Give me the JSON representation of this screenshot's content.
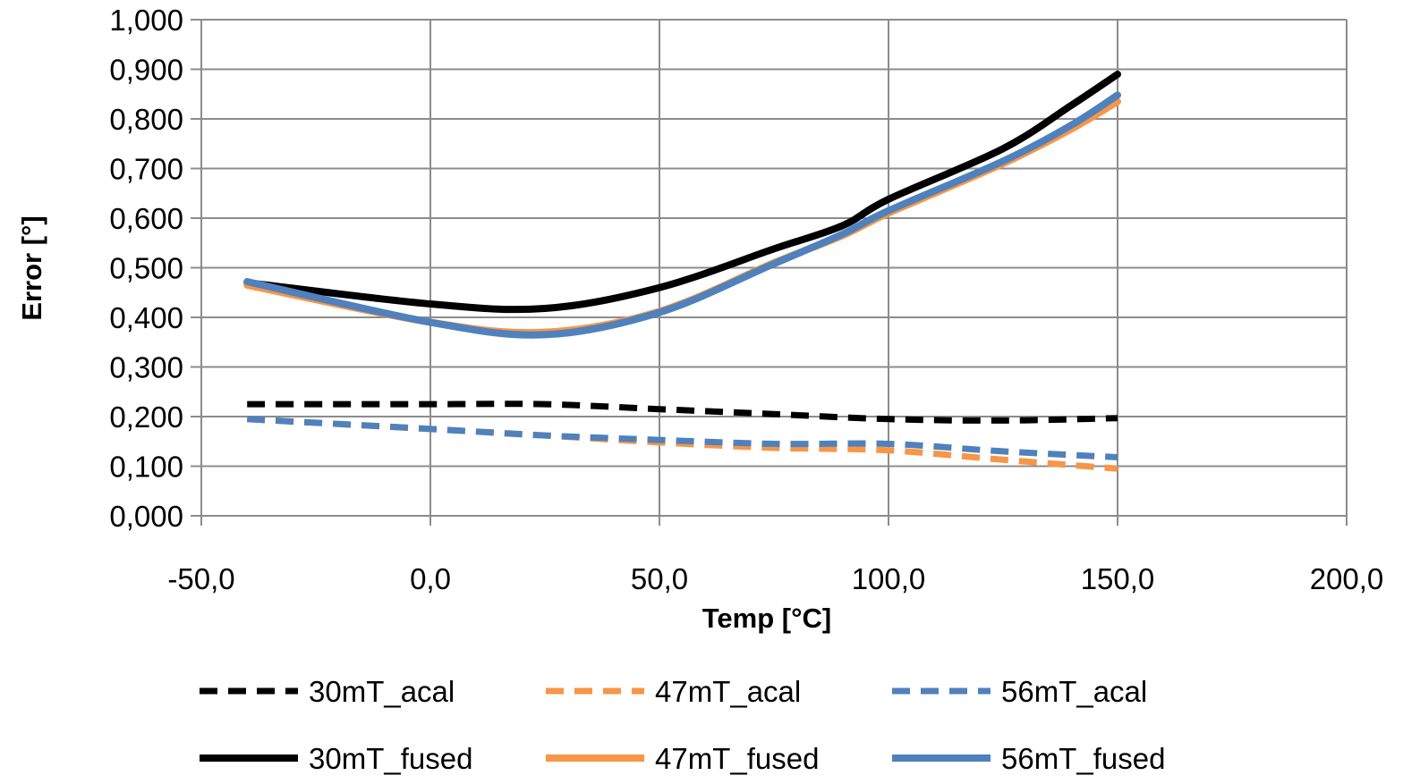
{
  "chart_data": {
    "type": "line",
    "title": "",
    "xlabel": "Temp [°C]",
    "ylabel": "Error [°]",
    "xlim": [
      -50,
      200
    ],
    "ylim": [
      0,
      1
    ],
    "x_ticks": [
      -50,
      0,
      50,
      100,
      150,
      200
    ],
    "x_tick_labels": [
      "-50,0",
      "0,0",
      "50,0",
      "100,0",
      "150,0",
      "200,0"
    ],
    "y_ticks": [
      0,
      0.1,
      0.2,
      0.3,
      0.4,
      0.5,
      0.6,
      0.7,
      0.8,
      0.9,
      1.0
    ],
    "y_tick_labels": [
      "0,000",
      "0,100",
      "0,200",
      "0,300",
      "0,400",
      "0,500",
      "0,600",
      "0,700",
      "0,800",
      "0,900",
      "1,000"
    ],
    "grid": true,
    "legend_position": "bottom",
    "series": [
      {
        "name": "30mT_acal",
        "color": "#000000",
        "dashed": true,
        "points": [
          [
            -40,
            0.225
          ],
          [
            0,
            0.225
          ],
          [
            25,
            0.225
          ],
          [
            50,
            0.215
          ],
          [
            75,
            0.205
          ],
          [
            100,
            0.195
          ],
          [
            125,
            0.192
          ],
          [
            150,
            0.197
          ]
        ]
      },
      {
        "name": "47mT_acal",
        "color": "#F79646",
        "dashed": true,
        "points": [
          [
            -40,
            0.195
          ],
          [
            0,
            0.175
          ],
          [
            25,
            0.162
          ],
          [
            50,
            0.148
          ],
          [
            75,
            0.137
          ],
          [
            100,
            0.132
          ],
          [
            125,
            0.113
          ],
          [
            150,
            0.095
          ]
        ]
      },
      {
        "name": "56mT_acal",
        "color": "#4F81BD",
        "dashed": true,
        "points": [
          [
            -40,
            0.195
          ],
          [
            0,
            0.175
          ],
          [
            25,
            0.162
          ],
          [
            50,
            0.153
          ],
          [
            75,
            0.145
          ],
          [
            100,
            0.145
          ],
          [
            125,
            0.13
          ],
          [
            150,
            0.118
          ]
        ]
      },
      {
        "name": "30mT_fused",
        "color": "#000000",
        "dashed": false,
        "points": [
          [
            -40,
            0.47
          ],
          [
            0,
            0.427
          ],
          [
            25,
            0.418
          ],
          [
            50,
            0.46
          ],
          [
            75,
            0.538
          ],
          [
            90,
            0.585
          ],
          [
            100,
            0.638
          ],
          [
            125,
            0.74
          ],
          [
            140,
            0.828
          ],
          [
            150,
            0.89
          ]
        ]
      },
      {
        "name": "47mT_fused",
        "color": "#F79646",
        "dashed": false,
        "points": [
          [
            -40,
            0.465
          ],
          [
            0,
            0.39
          ],
          [
            25,
            0.37
          ],
          [
            50,
            0.412
          ],
          [
            75,
            0.51
          ],
          [
            90,
            0.565
          ],
          [
            100,
            0.61
          ],
          [
            125,
            0.71
          ],
          [
            140,
            0.78
          ],
          [
            150,
            0.835
          ]
        ]
      },
      {
        "name": "56mT_fused",
        "color": "#4F81BD",
        "dashed": false,
        "points": [
          [
            -40,
            0.472
          ],
          [
            0,
            0.39
          ],
          [
            25,
            0.365
          ],
          [
            50,
            0.41
          ],
          [
            75,
            0.508
          ],
          [
            90,
            0.568
          ],
          [
            100,
            0.615
          ],
          [
            125,
            0.715
          ],
          [
            140,
            0.788
          ],
          [
            150,
            0.848
          ]
        ]
      }
    ]
  }
}
